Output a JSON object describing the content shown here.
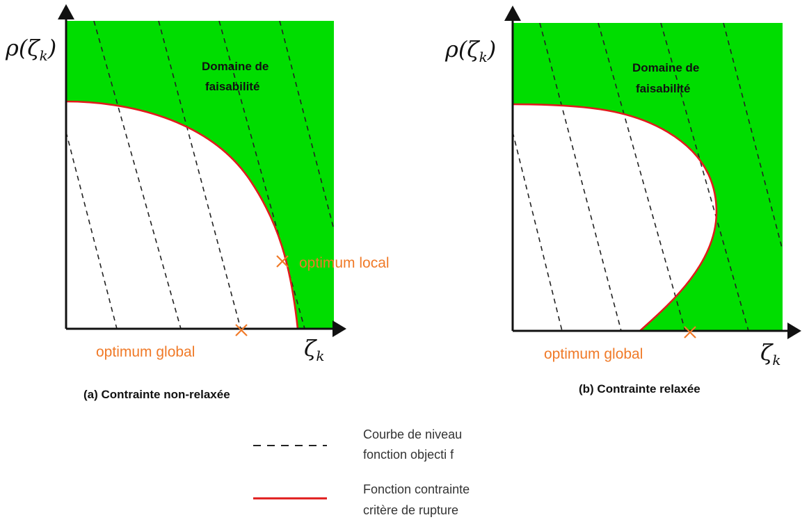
{
  "colors": {
    "feasible_fill": "#00dd00",
    "constraint_curve": "#e01b1b",
    "optimum_marker": "#f07a28",
    "level_curve": "#222222",
    "axis": "#111111"
  },
  "panel_a": {
    "y_axis_label": "ρ(ζ",
    "y_axis_sub": "k",
    "y_axis_close": ")",
    "x_axis_label": "ζ",
    "x_axis_sub": "k",
    "region_label_line1": "Domaine de",
    "region_label_line2": "faisabilité",
    "local_optimum_label": "optimum local",
    "global_optimum_label": "optimum global",
    "caption": "(a) Contrainte non-relaxée"
  },
  "panel_b": {
    "y_axis_label": "ρ(ζ",
    "y_axis_sub": "k",
    "y_axis_close": ")",
    "x_axis_label": "ζ",
    "x_axis_sub": "k",
    "region_label_line1": "Domaine de",
    "region_label_line2": "faisabilité",
    "global_optimum_label": "optimum global",
    "caption": "(b) Contrainte relaxée"
  },
  "legend": {
    "dashed_line1": "Courbe de niveau",
    "dashed_line2": "fonction objecti f",
    "solid_line1": "Fonction contrainte",
    "solid_line2": "critère de rupture"
  }
}
